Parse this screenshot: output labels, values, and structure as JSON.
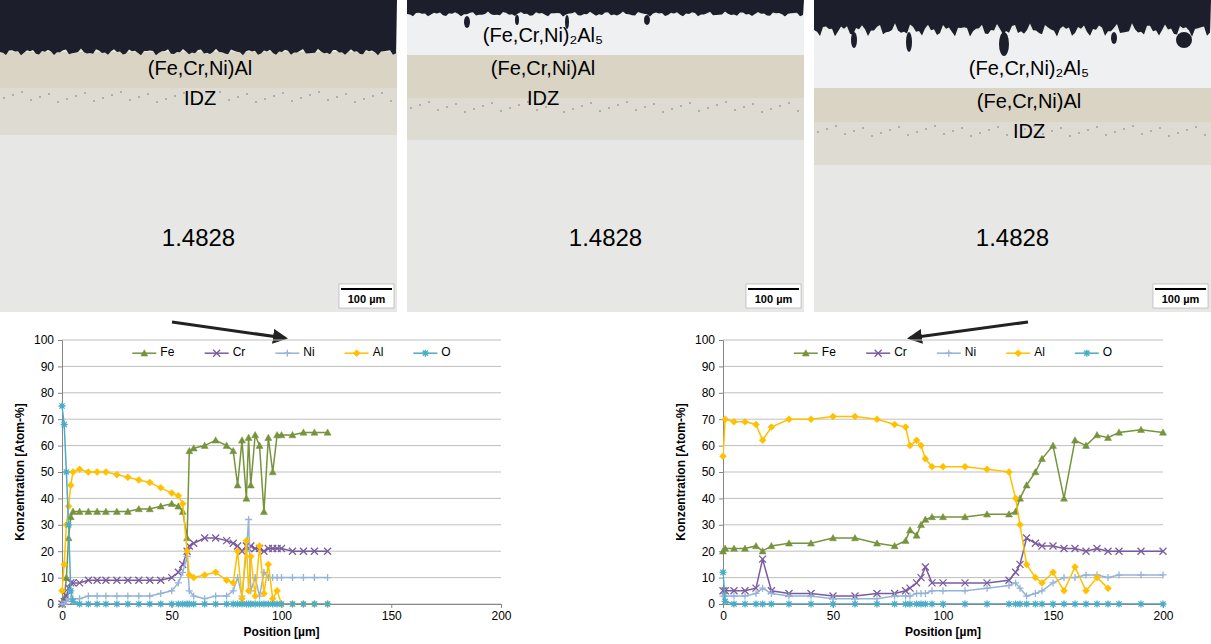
{
  "micrographs": [
    {
      "layers": [
        "(Fe,Cr,Ni)Al",
        "IDZ"
      ],
      "substrate": "1.4828",
      "scale_bar": "100 µm"
    },
    {
      "layers": [
        "(Fe,Cr,Ni)₂Al₅",
        "(Fe,Cr,Ni)Al",
        "IDZ"
      ],
      "substrate": "1.4828",
      "scale_bar": "100 µm"
    },
    {
      "layers": [
        "(Fe,Cr,Ni)₂Al₅",
        "(Fe,Cr,Ni)Al",
        "IDZ"
      ],
      "substrate": "1.4828",
      "scale_bar": "100 µm"
    }
  ],
  "chart_data": [
    {
      "type": "line",
      "x_label": "Position [µm]",
      "y_label": "Konzentration [Atom-%]",
      "xlim": [
        0,
        200
      ],
      "xticks": [
        0,
        50,
        100,
        150,
        200
      ],
      "ylim": [
        0,
        100
      ],
      "yticks": [
        0,
        10,
        20,
        30,
        40,
        50,
        60,
        70,
        80,
        90,
        100
      ],
      "grid": true,
      "legend": "top",
      "x": [
        0,
        1,
        2,
        3,
        4,
        5,
        8,
        12,
        16,
        20,
        25,
        30,
        35,
        40,
        45,
        50,
        53,
        55,
        57,
        58,
        60,
        65,
        70,
        75,
        78,
        80,
        82,
        84,
        85,
        86,
        88,
        90,
        92,
        94,
        96,
        98,
        100,
        105,
        110,
        115,
        121
      ],
      "series": [
        {
          "name": "Fe",
          "color": "#77933c",
          "marker": "triangle",
          "values": [
            0,
            2,
            10,
            25,
            33,
            35,
            35,
            35,
            35,
            35,
            35,
            35,
            36,
            36,
            37,
            38,
            37,
            35,
            25,
            58,
            59,
            60,
            62,
            60,
            58,
            45,
            62,
            40,
            63,
            45,
            64,
            60,
            35,
            63,
            50,
            64,
            64,
            64,
            65,
            65,
            65
          ]
        },
        {
          "name": "Cr",
          "color": "#7a5c9e",
          "marker": "x",
          "values": [
            0,
            1,
            3,
            6,
            8,
            8,
            8,
            9,
            9,
            9,
            9,
            9,
            9,
            9,
            9,
            10,
            12,
            15,
            20,
            22,
            23,
            25,
            25,
            24,
            23,
            22,
            20,
            22,
            21,
            22,
            21,
            21,
            20,
            21,
            21,
            21,
            21,
            20,
            20,
            20,
            20
          ]
        },
        {
          "name": "Ni",
          "color": "#95b3d7",
          "marker": "plus",
          "values": [
            0,
            0,
            1,
            2,
            2,
            2,
            2,
            3,
            3,
            3,
            3,
            3,
            3,
            3,
            4,
            5,
            8,
            12,
            18,
            5,
            3,
            2,
            3,
            3,
            5,
            10,
            3,
            20,
            32,
            5,
            10,
            3,
            12,
            10,
            10,
            10,
            10,
            10,
            10,
            10,
            10
          ]
        },
        {
          "name": "Al",
          "color": "#ffc000",
          "marker": "diamond",
          "values": [
            5,
            15,
            30,
            37,
            45,
            50,
            51,
            50,
            50,
            50,
            49,
            48,
            47,
            46,
            44,
            42,
            41,
            38,
            20,
            11,
            10,
            11,
            12,
            9,
            8,
            20,
            2,
            24,
            5,
            18,
            3,
            22,
            4,
            15,
            2,
            5,
            0,
            0,
            0,
            0,
            0
          ]
        },
        {
          "name": "O",
          "color": "#4bacc6",
          "marker": "asterisk",
          "values": [
            75,
            68,
            50,
            30,
            5,
            1,
            0,
            0,
            0,
            0,
            0,
            0,
            0,
            0,
            0,
            0,
            0,
            0,
            0,
            0,
            0,
            0,
            0,
            0,
            0,
            0,
            0,
            0,
            0,
            0,
            0,
            0,
            0,
            0,
            0,
            0,
            0,
            0,
            0,
            0,
            0
          ]
        }
      ]
    },
    {
      "type": "line",
      "x_label": "Position [µm]",
      "y_label": "Konzentration [Atom-%]",
      "xlim": [
        0,
        200
      ],
      "xticks": [
        0,
        50,
        100,
        150,
        200
      ],
      "ylim": [
        0,
        100
      ],
      "yticks": [
        0,
        10,
        20,
        30,
        40,
        50,
        60,
        70,
        80,
        90,
        100
      ],
      "grid": true,
      "legend": "top",
      "x": [
        0,
        1,
        5,
        10,
        15,
        18,
        22,
        30,
        40,
        50,
        60,
        70,
        78,
        83,
        85,
        88,
        90,
        92,
        95,
        100,
        110,
        120,
        130,
        133,
        135,
        138,
        142,
        145,
        150,
        155,
        160,
        165,
        170,
        175,
        180,
        190,
        200
      ],
      "series": [
        {
          "name": "Fe",
          "color": "#77933c",
          "marker": "triangle",
          "values": [
            20,
            21,
            21,
            21,
            22,
            20,
            22,
            23,
            23,
            25,
            25,
            23,
            22,
            24,
            28,
            26,
            30,
            32,
            33,
            33,
            33,
            34,
            34,
            35,
            40,
            45,
            50,
            55,
            60,
            40,
            62,
            60,
            64,
            63,
            65,
            66,
            65
          ]
        },
        {
          "name": "Cr",
          "color": "#7a5c9e",
          "marker": "x",
          "values": [
            5,
            5,
            5,
            5,
            6,
            17,
            5,
            4,
            4,
            3,
            3,
            4,
            4,
            5,
            6,
            8,
            10,
            14,
            8,
            8,
            8,
            8,
            9,
            12,
            15,
            25,
            23,
            22,
            22,
            21,
            21,
            20,
            21,
            20,
            20,
            20,
            20
          ]
        },
        {
          "name": "Ni",
          "color": "#95b3d7",
          "marker": "plus",
          "values": [
            3,
            3,
            3,
            3,
            4,
            6,
            4,
            3,
            3,
            2,
            2,
            2,
            3,
            3,
            3,
            4,
            4,
            4,
            5,
            5,
            5,
            6,
            7,
            8,
            6,
            3,
            4,
            5,
            8,
            10,
            10,
            11,
            11,
            10,
            11,
            11,
            11
          ]
        },
        {
          "name": "Al",
          "color": "#ffc000",
          "marker": "diamond",
          "values": [
            56,
            70,
            69,
            69,
            68,
            62,
            67,
            70,
            70,
            71,
            71,
            70,
            68,
            67,
            60,
            62,
            60,
            55,
            52,
            52,
            52,
            51,
            50,
            40,
            30,
            15,
            10,
            8,
            12,
            5,
            14,
            5,
            10,
            6,
            null,
            null,
            null
          ]
        },
        {
          "name": "O",
          "color": "#4bacc6",
          "marker": "asterisk",
          "values": [
            12,
            1,
            0,
            0,
            0,
            0,
            0,
            0,
            0,
            0,
            0,
            0,
            0,
            0,
            0,
            0,
            0,
            0,
            0,
            0,
            0,
            0,
            0,
            0,
            0,
            0,
            0,
            0,
            0,
            0,
            0,
            0,
            0,
            0,
            0,
            0,
            0
          ]
        }
      ]
    }
  ]
}
